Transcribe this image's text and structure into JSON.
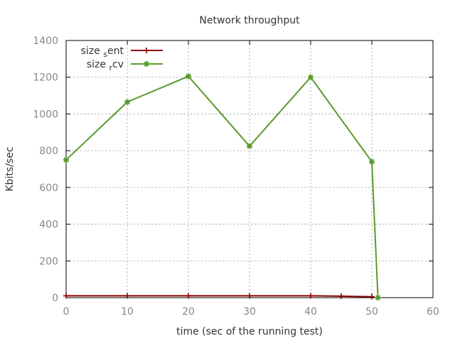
{
  "chart_data": {
    "type": "line",
    "title": "Network throughput",
    "xlabel": "time (sec of the running test)",
    "ylabel": "Kbits/sec",
    "xlim": [
      0,
      60
    ],
    "ylim": [
      0,
      1400
    ],
    "x_ticks": [
      0,
      10,
      20,
      30,
      40,
      50,
      60
    ],
    "y_ticks": [
      0,
      200,
      400,
      600,
      800,
      1000,
      1200,
      1400
    ],
    "grid": true,
    "legend_position": "top-left",
    "series": [
      {
        "name": "size_sent",
        "label_main_before": "size",
        "label_sub": "s",
        "label_main_after": "ent",
        "color": "#8b0000",
        "marker": "plus",
        "points": [
          [
            0,
            10
          ],
          [
            10,
            10
          ],
          [
            20,
            10
          ],
          [
            30,
            10
          ],
          [
            40,
            10
          ],
          [
            45,
            8
          ],
          [
            50,
            5
          ]
        ]
      },
      {
        "name": "size_rcv",
        "label_main_before": "size",
        "label_sub": "r",
        "label_main_after": "cv",
        "color": "#5a9a2c",
        "marker": "star",
        "points": [
          [
            0,
            750
          ],
          [
            10,
            1065
          ],
          [
            20,
            1205
          ],
          [
            30,
            825
          ],
          [
            40,
            1200
          ],
          [
            50,
            740
          ],
          [
            51,
            0
          ]
        ]
      }
    ]
  }
}
